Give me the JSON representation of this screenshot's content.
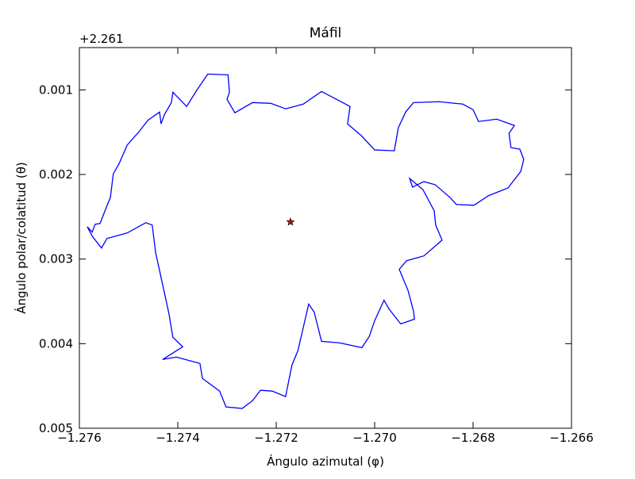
{
  "chart_data": {
    "type": "line",
    "title": "Máfil",
    "x_label": "Ángulo azimutal (φ)",
    "y_label": "Ángulo polar/colatitud (θ)",
    "y_offset_label": "+2.261",
    "xlim": [
      -1.276,
      -1.266
    ],
    "ylim": [
      0.005,
      0.0005
    ],
    "xticks": [
      {
        "value": -1.276,
        "label": "−1.276"
      },
      {
        "value": -1.274,
        "label": "−1.274"
      },
      {
        "value": -1.272,
        "label": "−1.272"
      },
      {
        "value": -1.27,
        "label": "−1.270"
      },
      {
        "value": -1.268,
        "label": "−1.268"
      },
      {
        "value": -1.266,
        "label": "−1.266"
      }
    ],
    "yticks": [
      0.001,
      0.002,
      0.003,
      0.004,
      0.005
    ],
    "grid": false,
    "series": [
      {
        "color": "#0000ff",
        "x": [
          -1.27584,
          -1.27574,
          -1.27568,
          -1.27558,
          -1.27548,
          -1.27537,
          -1.27531,
          -1.27519,
          -1.27503,
          -1.27479,
          -1.2746,
          -1.27437,
          -1.27434,
          -1.27427,
          -1.27413,
          -1.2741,
          -1.27382,
          -1.27361,
          -1.27339,
          -1.27298,
          -1.27295,
          -1.273,
          -1.27284,
          -1.27248,
          -1.27211,
          -1.27181,
          -1.27145,
          -1.27108,
          -1.27065,
          -1.2705,
          -1.27055,
          -1.27027,
          -1.27,
          -1.2696,
          -1.26952,
          -1.26937,
          -1.26921,
          -1.26869,
          -1.26821,
          -1.268,
          -1.26789,
          -1.26752,
          -1.26716,
          -1.26727,
          -1.26723,
          -1.26705,
          -1.26697,
          -1.26703,
          -1.26729,
          -1.26769,
          -1.26798,
          -1.26834,
          -1.26847,
          -1.26877,
          -1.269,
          -1.26923,
          -1.26929,
          -1.26902,
          -1.26879,
          -1.26876,
          -1.26863,
          -1.269,
          -1.26935,
          -1.2695,
          -1.26932,
          -1.26921,
          -1.26919,
          -1.26947,
          -1.26971,
          -1.26981,
          -1.27,
          -1.27011,
          -1.27026,
          -1.27071,
          -1.27108,
          -1.27116,
          -1.27123,
          -1.27134,
          -1.27156,
          -1.27168,
          -1.27181,
          -1.27208,
          -1.27232,
          -1.27248,
          -1.27269,
          -1.27302,
          -1.27315,
          -1.2735,
          -1.27355,
          -1.27403,
          -1.27431,
          -1.2739,
          -1.2741,
          -1.27418,
          -1.27432,
          -1.27445,
          -1.27452,
          -1.27465,
          -1.27503,
          -1.27544,
          -1.27555,
          -1.27574,
          -1.27584
        ],
        "values": [
          0.002617,
          0.002682,
          0.002589,
          0.002579,
          0.00243,
          0.002271,
          0.001991,
          0.001869,
          0.001654,
          0.001495,
          0.001355,
          0.001262,
          0.001402,
          0.00129,
          0.00115,
          0.001028,
          0.001196,
          0.001,
          0.000813,
          0.000822,
          0.001028,
          0.001112,
          0.001271,
          0.00115,
          0.001159,
          0.001224,
          0.001168,
          0.001019,
          0.00115,
          0.001196,
          0.001402,
          0.001542,
          0.00171,
          0.00172,
          0.001449,
          0.001262,
          0.00115,
          0.00114,
          0.001168,
          0.001234,
          0.001374,
          0.001346,
          0.001421,
          0.001514,
          0.001682,
          0.001701,
          0.001822,
          0.001963,
          0.002159,
          0.002252,
          0.002364,
          0.002355,
          0.002271,
          0.002121,
          0.002084,
          0.00215,
          0.002047,
          0.002178,
          0.00243,
          0.002598,
          0.002776,
          0.002963,
          0.003019,
          0.003121,
          0.003374,
          0.003617,
          0.00371,
          0.003766,
          0.003589,
          0.003486,
          0.003729,
          0.003916,
          0.004047,
          0.003991,
          0.003972,
          0.003785,
          0.003626,
          0.003533,
          0.004084,
          0.004252,
          0.004626,
          0.004561,
          0.004551,
          0.004673,
          0.004766,
          0.004748,
          0.004561,
          0.004411,
          0.004234,
          0.004159,
          0.004187,
          0.004037,
          0.003925,
          0.003645,
          0.003271,
          0.002925,
          0.002598,
          0.00257,
          0.002692,
          0.002757,
          0.002869,
          0.002729,
          0.002617
        ]
      },
      {
        "color": "#cc0000",
        "marker": "star",
        "x": [
          -1.27171
        ],
        "values": [
          0.002561
        ]
      }
    ]
  }
}
